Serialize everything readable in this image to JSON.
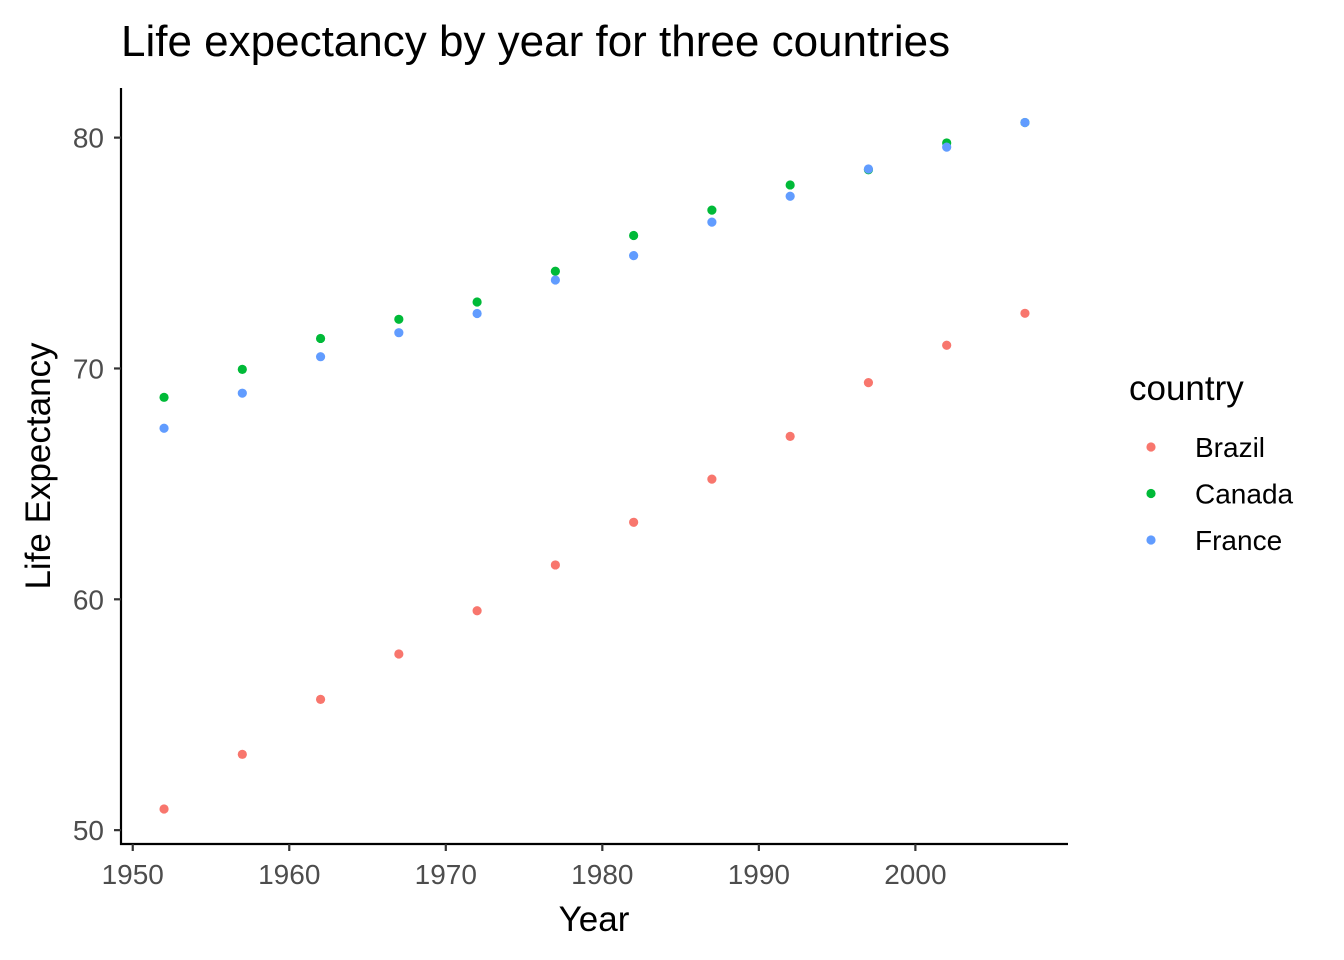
{
  "chart_data": {
    "type": "scatter",
    "title": "Life expectancy by year for three countries",
    "xlabel": "Year",
    "ylabel": "Life Expectancy",
    "xlim": [
      1949.25,
      2009.75
    ],
    "ylim": [
      49.4,
      82.15
    ],
    "x_ticks": [
      1950,
      1960,
      1970,
      1980,
      1990,
      2000
    ],
    "y_ticks": [
      50,
      60,
      70,
      80
    ],
    "grid": false,
    "legend": {
      "title": "country",
      "position": "right"
    },
    "series": [
      {
        "name": "Brazil",
        "color": "#F8766D",
        "x": [
          1952,
          1957,
          1962,
          1967,
          1972,
          1977,
          1982,
          1987,
          1992,
          1997,
          2002,
          2007
        ],
        "y": [
          50.917,
          53.285,
          55.665,
          57.632,
          59.504,
          61.489,
          63.336,
          65.205,
          67.057,
          69.388,
          71.006,
          72.39
        ]
      },
      {
        "name": "Canada",
        "color": "#00BA38",
        "x": [
          1952,
          1957,
          1962,
          1967,
          1972,
          1977,
          1982,
          1987,
          1992,
          1997,
          2002,
          2007
        ],
        "y": [
          68.75,
          69.96,
          71.3,
          72.13,
          72.88,
          74.21,
          75.76,
          76.86,
          77.95,
          78.61,
          79.77,
          80.653
        ]
      },
      {
        "name": "France",
        "color": "#619CFF",
        "x": [
          1952,
          1957,
          1962,
          1967,
          1972,
          1977,
          1982,
          1987,
          1992,
          1997,
          2002,
          2007
        ],
        "y": [
          67.41,
          68.93,
          70.51,
          71.55,
          72.38,
          73.83,
          74.89,
          76.34,
          77.46,
          78.64,
          79.59,
          80.657
        ]
      }
    ]
  }
}
